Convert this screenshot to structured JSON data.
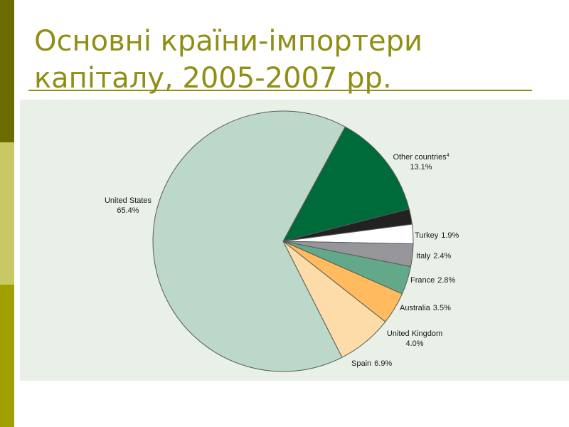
{
  "slide": {
    "title_line1": "Основні країни-імпортери",
    "title_line2": "капіталу, 2005-2007 рр."
  },
  "chart_data": {
    "type": "pie",
    "title": "",
    "unit": "%",
    "start_angle_deg": -61.5,
    "direction": "clockwise",
    "slices": [
      {
        "name": "Other countries",
        "superscript": "4",
        "value": 13.1,
        "label": "13.1%",
        "color": "#006b3a"
      },
      {
        "name": "Turkey",
        "value": 1.9,
        "label": "1.9%",
        "color": "#222222"
      },
      {
        "name": "Italy",
        "value": 2.4,
        "label": "2.4%",
        "color": "#ffffff"
      },
      {
        "name": "France",
        "value": 2.8,
        "label": "2.8%",
        "color": "#96969a"
      },
      {
        "name": "Australia",
        "value": 3.5,
        "label": "3.5%",
        "color": "#64a88a"
      },
      {
        "name": "United Kingdom",
        "value": 4.0,
        "label": "4.0%",
        "color": "#ffbb5e"
      },
      {
        "name": "Spain",
        "value": 6.9,
        "label": "6.9%",
        "color": "#fddcaa"
      },
      {
        "name": "United States",
        "value": 65.4,
        "label": "65.4%",
        "color": "#bcd8c8"
      }
    ]
  }
}
